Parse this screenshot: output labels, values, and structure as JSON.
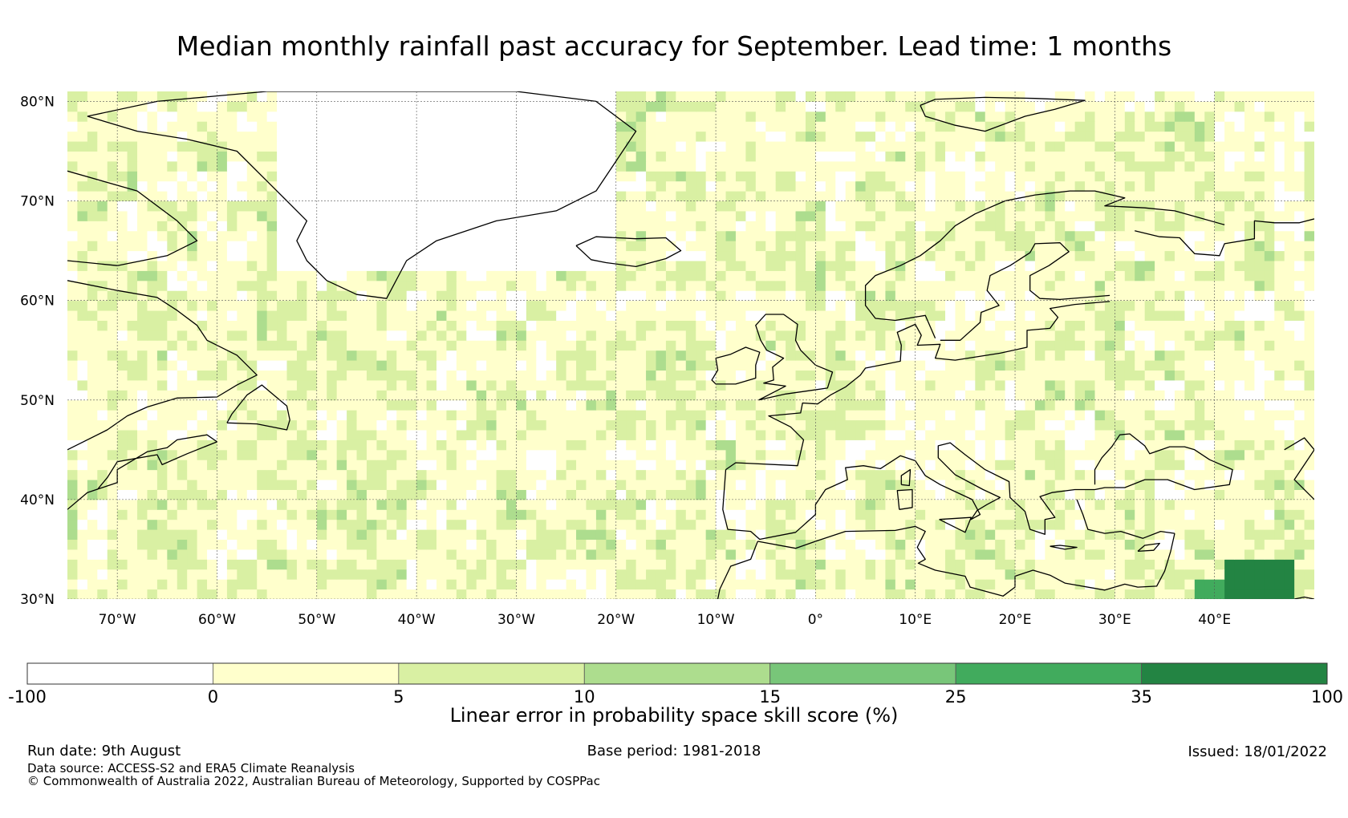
{
  "title": "Median monthly rainfall past accuracy for September. Lead time: 1 months",
  "map": {
    "lat_labels": [
      "80°N",
      "70°N",
      "60°N",
      "50°N",
      "40°N",
      "30°N"
    ],
    "lon_labels": [
      "70°W",
      "60°W",
      "50°W",
      "40°W",
      "30°W",
      "20°W",
      "10°W",
      "0°",
      "10°E",
      "20°E",
      "30°E",
      "40°E"
    ],
    "lat_range": [
      30,
      81
    ],
    "lon_range": [
      -75,
      50
    ]
  },
  "colorbar": {
    "boundaries": [
      "-100",
      "0",
      "5",
      "10",
      "15",
      "25",
      "35",
      "100"
    ],
    "colors": [
      "#ffffff",
      "#ffffcc",
      "#d9f0a3",
      "#addd8e",
      "#78c679",
      "#41ab5d",
      "#238443"
    ],
    "label": "Linear error in probability space skill score (%)"
  },
  "footer": {
    "run_date": "Run date: 9th August",
    "base_period": "Base period: 1981-2018",
    "issued": "Issued: 18/01/2022",
    "data_source": "Data source: ACCESS-S2 and ERA5 Climate Reanalysis",
    "copyright": "© Commonwealth of Australia 2022, Australian Bureau of Meteorology, Supported by COSPPac"
  }
}
